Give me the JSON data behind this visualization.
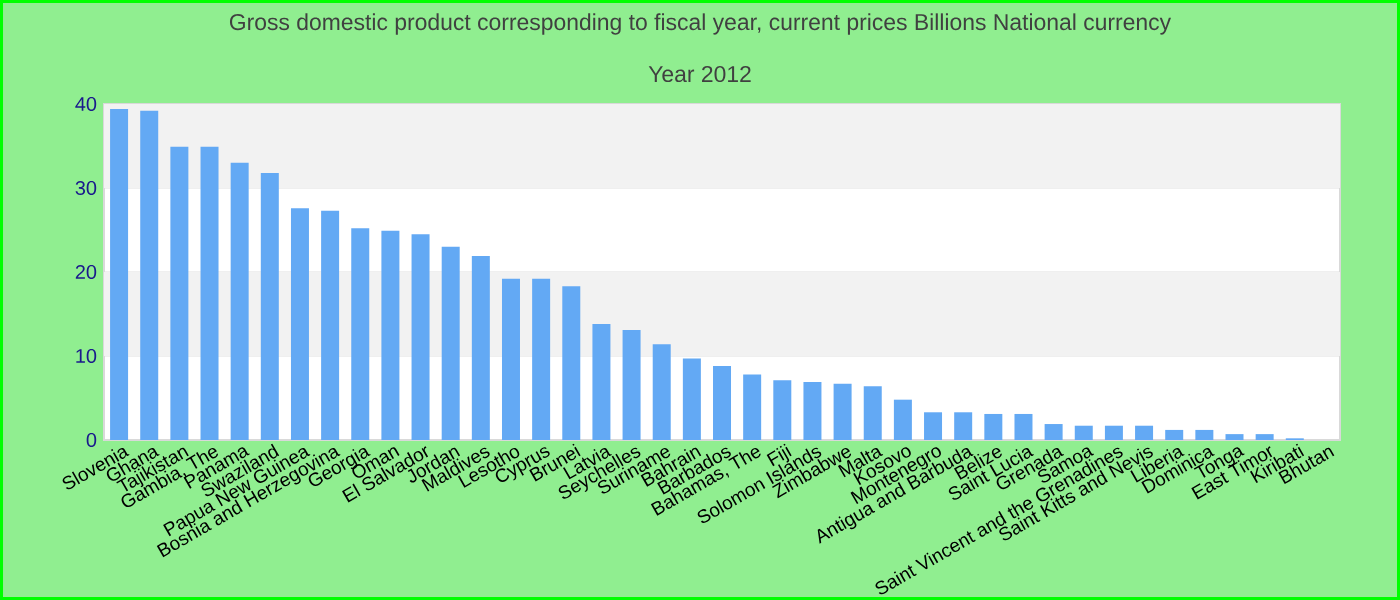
{
  "chart_data": {
    "type": "bar",
    "title": "Gross domestic product corresponding to fiscal year, current prices Billions National currency",
    "subtitle": "Year 2012",
    "categories": [
      "Slovenia",
      "Ghana",
      "Tajikistan",
      "Gambia, The",
      "Panama",
      "Swaziland",
      "Papua New Guinea",
      "Bosnia and Herzegovina",
      "Georgia",
      "Oman",
      "El Salvador",
      "Jordan",
      "Maldives",
      "Lesotho",
      "Cyprus",
      "Brunei",
      "Latvia",
      "Seychelles",
      "Suriname",
      "Bahrain",
      "Barbados",
      "Bahamas, The",
      "Fiji",
      "Solomon Islands",
      "Zimbabwe",
      "Malta",
      "Kosovo",
      "Montenegro",
      "Antigua and Barbuda",
      "Belize",
      "Saint Lucia",
      "Grenada",
      "Samoa",
      "Saint Vincent and the Grenadines",
      "Saint Kitts and Nevis",
      "Liberia",
      "Dominica",
      "Tonga",
      "East Timor",
      "Kiribati",
      "Bhutan"
    ],
    "values": [
      39.4,
      39.2,
      34.9,
      34.9,
      33.0,
      31.8,
      27.6,
      27.3,
      25.2,
      24.9,
      24.5,
      23.0,
      21.9,
      19.2,
      19.2,
      18.3,
      13.8,
      13.1,
      11.4,
      9.7,
      8.8,
      7.8,
      7.1,
      6.9,
      6.7,
      6.4,
      4.8,
      3.3,
      3.3,
      3.1,
      3.1,
      1.9,
      1.7,
      1.7,
      1.7,
      1.2,
      1.2,
      0.7,
      0.7,
      0.2,
      0
    ],
    "color": "#63a9f4",
    "ylim": [
      0,
      40
    ],
    "yticks": [
      0,
      10,
      20,
      30,
      40
    ],
    "grid": "y"
  }
}
